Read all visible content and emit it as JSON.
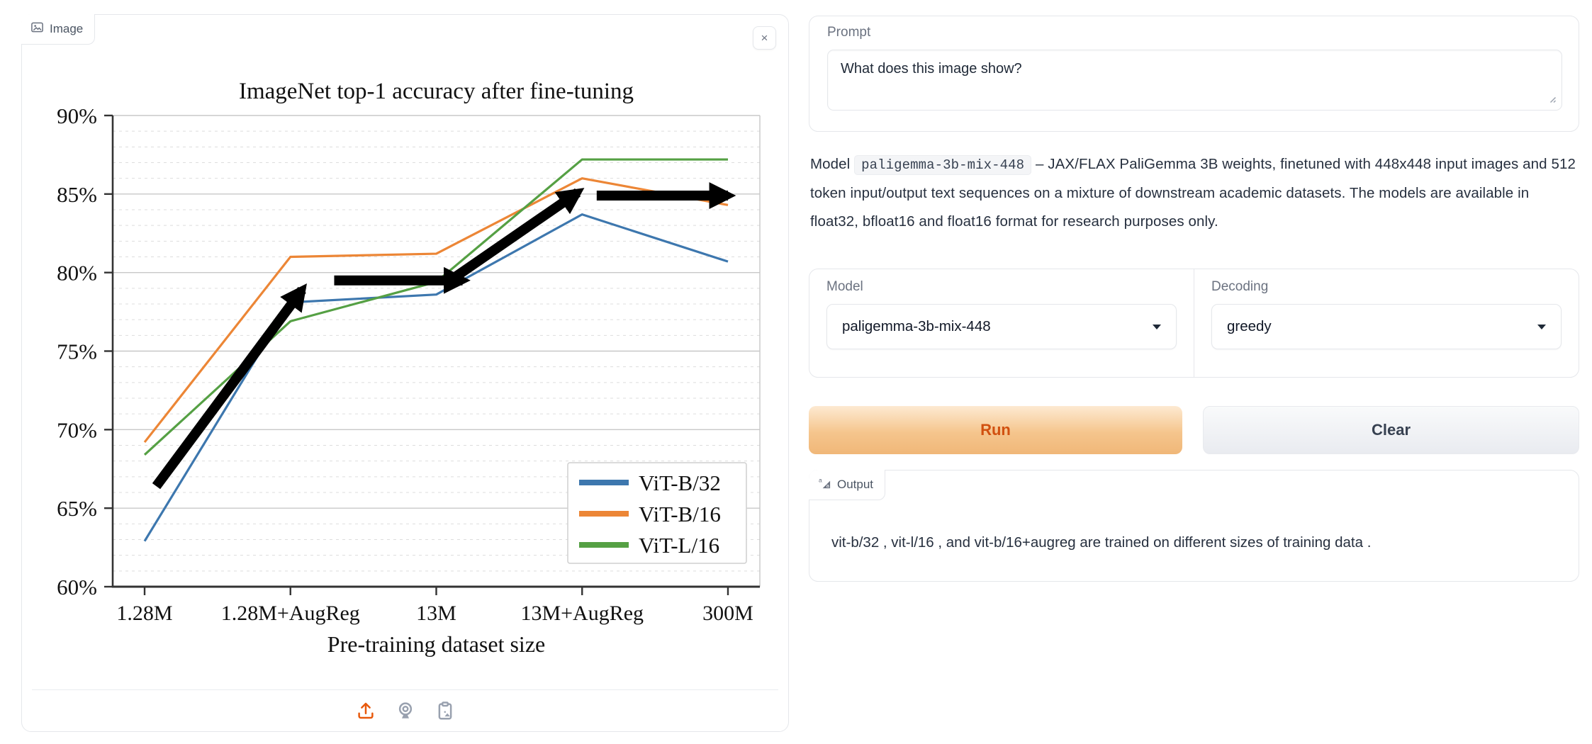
{
  "image_panel": {
    "tab_label": "Image",
    "close_glyph": "×"
  },
  "chart_data": {
    "type": "line",
    "title": "ImageNet top-1 accuracy after fine-tuning",
    "xlabel": "Pre-training dataset size",
    "ylabel": "",
    "categories": [
      "1.28M",
      "1.28M+AugReg",
      "13M",
      "13M+AugReg",
      "300M"
    ],
    "series": [
      {
        "name": "ViT-B/32",
        "color": "#3d77ae",
        "values": [
          62.9,
          78.1,
          78.6,
          83.7,
          80.7
        ]
      },
      {
        "name": "ViT-B/16",
        "color": "#ec8636",
        "values": [
          69.2,
          81.0,
          81.2,
          86.0,
          84.3
        ]
      },
      {
        "name": "ViT-L/16",
        "color": "#55a044",
        "values": [
          68.4,
          76.9,
          79.4,
          87.2,
          87.2
        ]
      }
    ],
    "ylim": [
      60,
      90
    ],
    "ytick_step": 5,
    "ytick_format": "percent",
    "grid": {
      "major": true,
      "minor_step": 1
    },
    "legend_position": "lower right",
    "annotations": {
      "color": "#000000",
      "arrows": [
        {
          "from": [
            0.08,
            66.4
          ],
          "to": [
            1.08,
            78.9
          ]
        },
        {
          "from": [
            1.3,
            79.5
          ],
          "to": [
            2.18,
            79.5
          ]
        },
        {
          "from": [
            2.08,
            79.4
          ],
          "to": [
            2.97,
            85.1
          ]
        },
        {
          "from": [
            3.1,
            84.9
          ],
          "to": [
            4.0,
            84.9
          ]
        }
      ]
    }
  },
  "prompt": {
    "label": "Prompt",
    "value": "What does this image show?"
  },
  "description": {
    "prefix": "Model ",
    "code": "paligemma-3b-mix-448",
    "rest": " – JAX/FLAX PaliGemma 3B weights, finetuned with 448x448 input images and 512 token input/output text sequences on a mixture of downstream academic datasets. The models are available in float32, bfloat16 and float16 format for research purposes only."
  },
  "model_select": {
    "label": "Model",
    "value": "paligemma-3b-mix-448"
  },
  "decoding_select": {
    "label": "Decoding",
    "value": "greedy"
  },
  "actions": {
    "run_label": "Run",
    "clear_label": "Clear"
  },
  "output": {
    "label": "Output",
    "value": "vit-b/32 , vit-l/16 , and vit-b/16+augreg are trained on different sizes of training data ."
  },
  "colors": {
    "accent_orange": "#e8590c",
    "icon_gray": "#99a1af",
    "border": "#e5e7eb"
  }
}
